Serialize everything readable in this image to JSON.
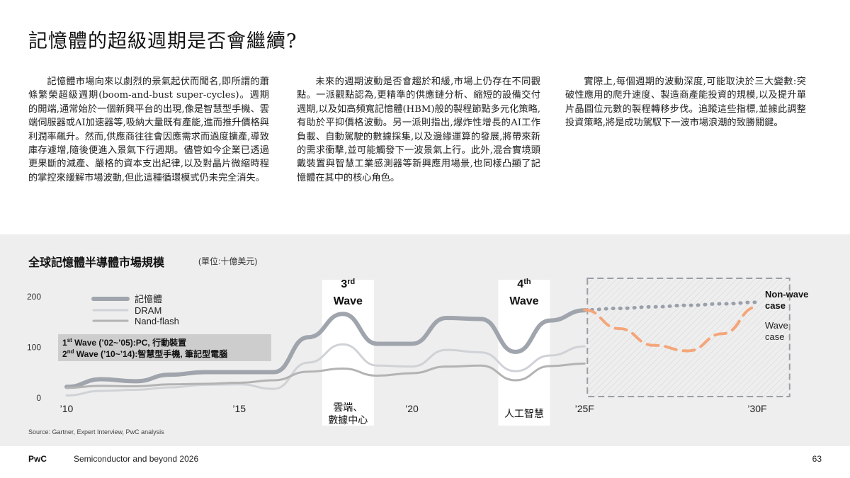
{
  "page": {
    "title": "記憶體的超級週期是否會繼續?",
    "paragraphs": [
      "記憶體市場向來以劇烈的景氣起伏而聞名,即所謂的蕭條繁榮超級週期(boom-and-bust super-cycles)。週期的開端,通常始於一個新興平台的出現,像是智慧型手機、雲端伺服器或AI加速器等,吸納大量既有產能,進而推升價格與利潤率飆升。然而,供應商往往會因應需求而過度擴產,導致庫存遽增,隨後便進入景氣下行週期。儘管如今企業已透過更果斷的減產、嚴格的資本支出紀律,以及對晶片微縮時程的掌控來緩解市場波動,但此這種循環模式仍未完全消失。",
      "未來的週期波動是否會趨於和緩,市場上仍存在不同觀點。一派觀點認為,更精準的供應鏈分析、縮短的設備交付週期,以及如高頻寬記憶體(HBM)般的製程節點多元化策略,有助於平抑價格波動。另一派則指出,爆炸性增長的AI工作負載、自動駕駛的數據採集,以及邊緣運算的發展,將帶來新的需求衝擊,並可能觸發下一波景氣上行。此外,混合實境頭戴裝置與智慧工業感測器等新興應用場景,也同樣凸顯了記憶體在其中的核心角色。",
      "實際上,每個週期的波動深度,可能取決於三大變數:突破性應用的爬升速度、製造商產能投資的規模,以及提升單片晶圓位元數的製程轉移步伐。追蹤這些指標,並據此調整投資策略,將是成功駕馭下一波市場浪潮的致勝關鍵。"
    ]
  },
  "chart_data": {
    "type": "line",
    "title": "全球記憶體半導體市場規模",
    "subtitle": "(單位:十億美元)",
    "x_tick_labels": [
      "’10",
      "’15",
      "’20",
      "’25F",
      "’30F"
    ],
    "ylim": [
      0,
      200
    ],
    "y_ticks": [
      0,
      100,
      200
    ],
    "series": [
      {
        "name": "記憶體",
        "color": "#a0a5ad",
        "x": [
          2010,
          2011,
          2012,
          2013,
          2014,
          2015,
          2016,
          2017,
          2018,
          2019,
          2020,
          2021,
          2022,
          2023,
          2024,
          2025
        ],
        "values": [
          22,
          37,
          33,
          46,
          51,
          51,
          51,
          120,
          166,
          107,
          107,
          158,
          156,
          91,
          153,
          173
        ]
      },
      {
        "name": "DRAM",
        "color": "#cfd2d6",
        "x": [
          2010,
          2011,
          2012,
          2013,
          2014,
          2015,
          2016,
          2017,
          2018,
          2019,
          2020,
          2021,
          2022,
          2023,
          2024,
          2025
        ],
        "values": [
          5,
          14,
          16,
          21,
          26,
          27,
          18,
          70,
          106,
          64,
          62,
          95,
          90,
          53,
          84,
          102
        ]
      },
      {
        "name": "Nand-flash",
        "color": "#b3b3b3",
        "x": [
          2010,
          2011,
          2012,
          2013,
          2014,
          2015,
          2016,
          2017,
          2018,
          2019,
          2020,
          2021,
          2022,
          2023,
          2024,
          2025
        ],
        "values": [
          20,
          24,
          23,
          27,
          28,
          30,
          35,
          52,
          58,
          44,
          49,
          62,
          64,
          35,
          63,
          68
        ]
      },
      {
        "name": "Non-wave case",
        "color": "#9aa0aa",
        "dashed": true,
        "x": [
          2025,
          2026,
          2027,
          2028,
          2029,
          2030
        ],
        "values": [
          174,
          177,
          180,
          183,
          186,
          189
        ]
      },
      {
        "name": "Wave case",
        "color": "#f4a67a",
        "dashed": true,
        "x": [
          2025,
          2026,
          2027,
          2028,
          2029,
          2030
        ],
        "values": [
          174,
          137,
          104,
          93,
          127,
          180
        ]
      }
    ],
    "legend": [
      "記憶體",
      "DRAM",
      "Nand-flash"
    ],
    "legend_note": [
      "1st Wave (’02~’05):PC, 行動裝置",
      "2nd Wave (’10~’14):智慧型手機, 筆記型電腦"
    ],
    "wave_bands": [
      {
        "label_sup": "3rd",
        "label": "Wave",
        "caption": "雲端、數據中心",
        "x_range": [
          2017.4,
          2018.9
        ]
      },
      {
        "label_sup": "4th",
        "label": "Wave",
        "caption": "人工智慧",
        "x_range": [
          2022.5,
          2024.0
        ]
      }
    ],
    "forecast_region": [
      2025,
      2031
    ]
  },
  "footer": {
    "source": "Source: Gartner, Expert Interview, PwC analysis",
    "brand": "PwC",
    "title": "Semiconductor and beyond 2026",
    "page": "63"
  }
}
